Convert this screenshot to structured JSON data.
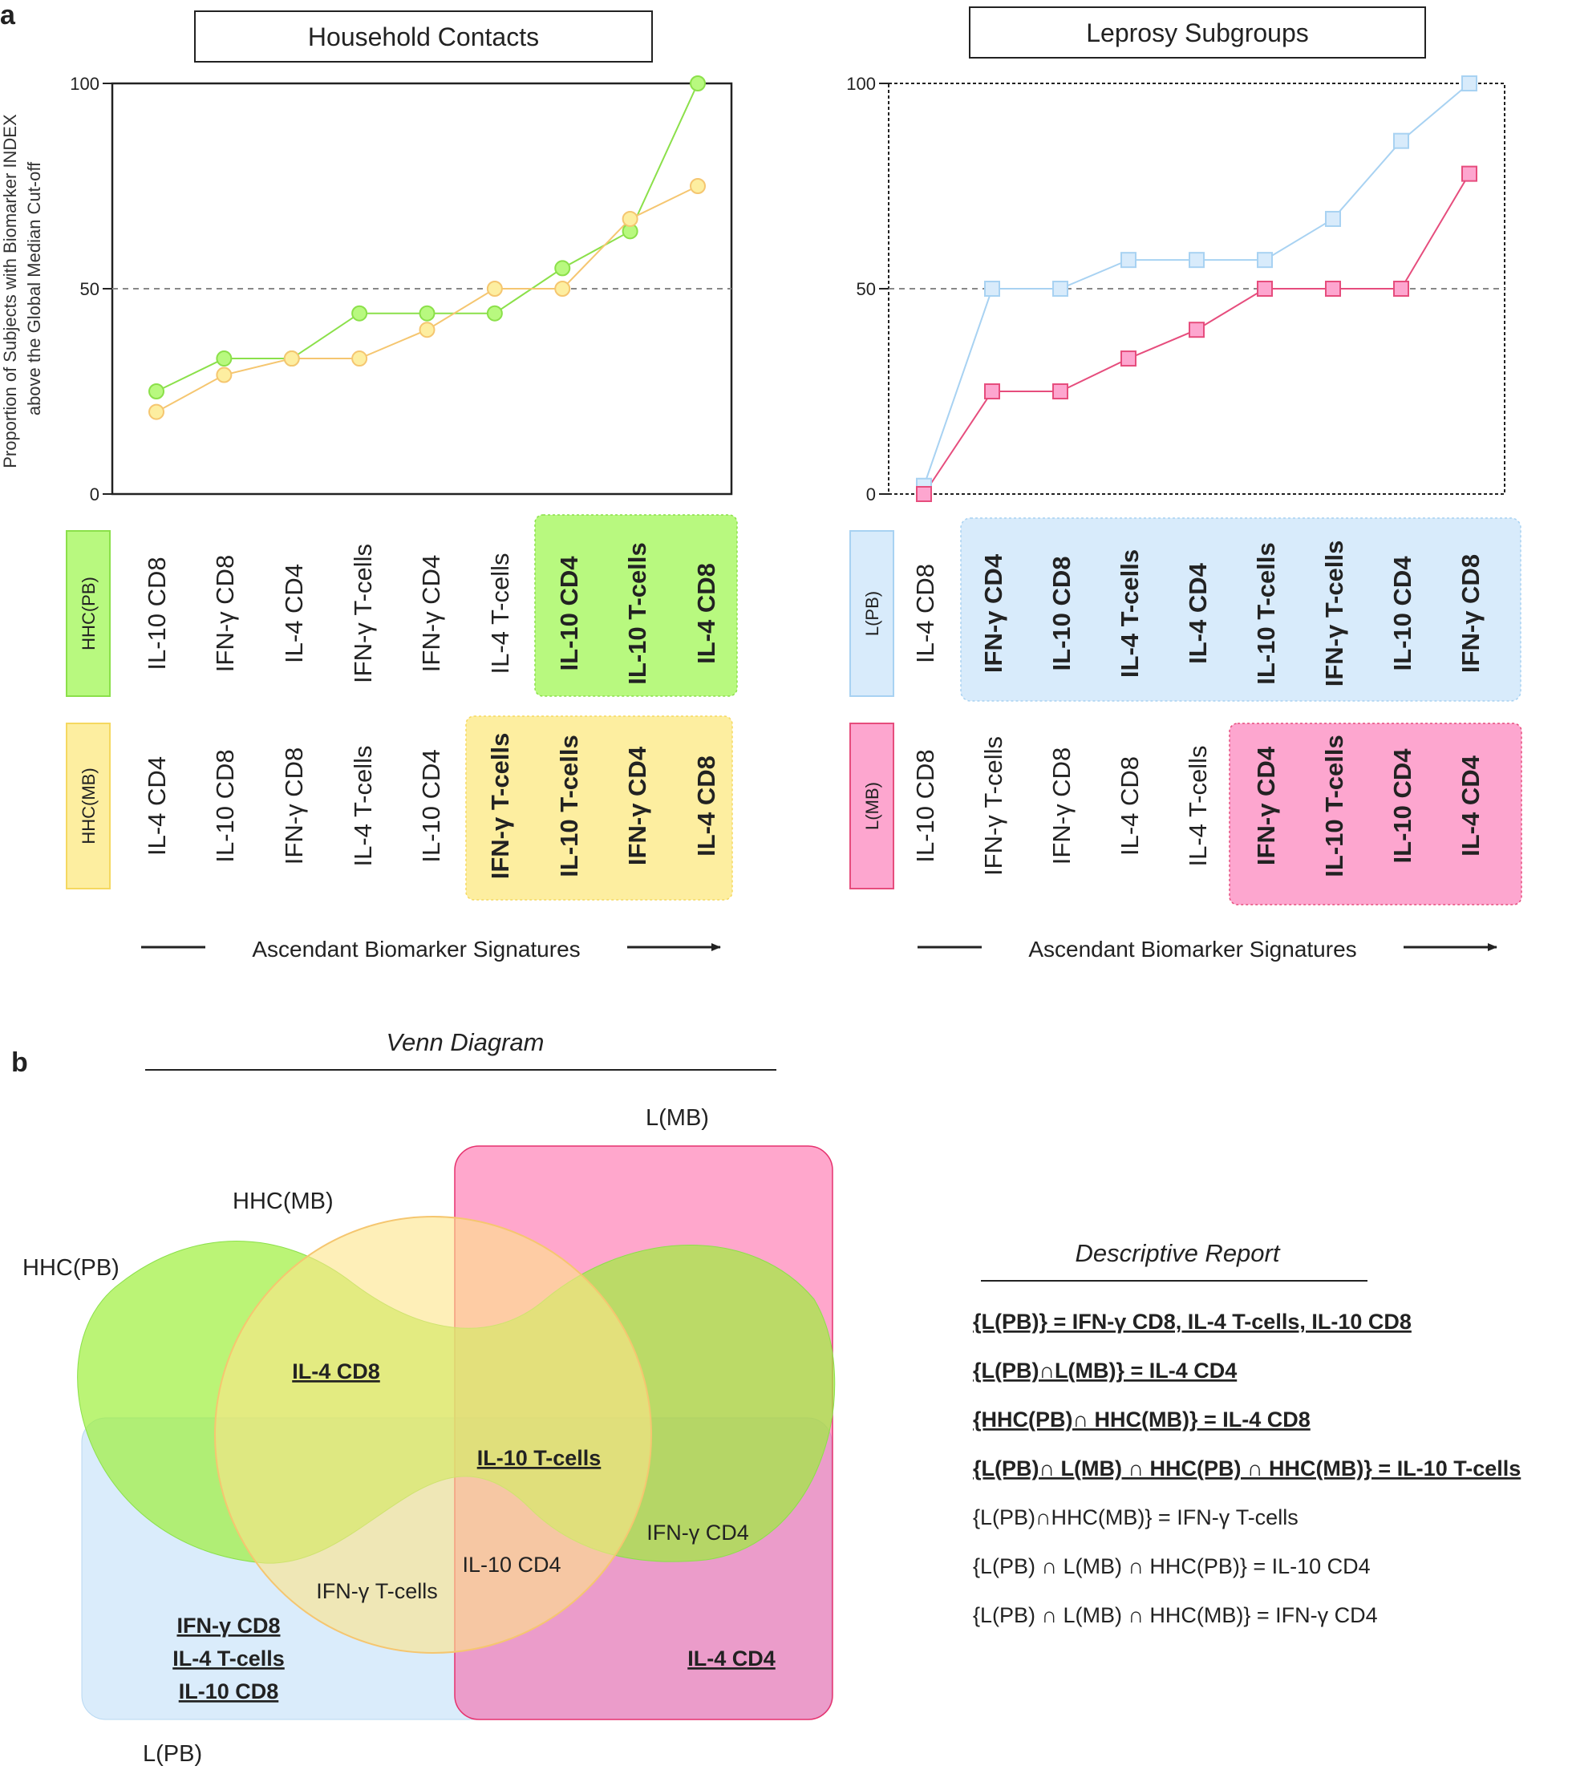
{
  "panel_a_label": "a",
  "panel_b_label": "b",
  "y_axis_label_line1": "Proportion of Subjects  with Biomarker INDEX",
  "y_axis_label_line2": "above the Global Median Cut-off",
  "colors": {
    "hhc_pb": "#b8f97f",
    "hhc_pb_line": "#8be04a",
    "hhc_mb": "#fdeea0",
    "hhc_mb_line": "#f5c670",
    "l_pb": "#d8ebfb",
    "l_pb_line": "#a8d2f2",
    "l_mb": "#fda6cf",
    "l_mb_line": "#e64d7d"
  },
  "chart_data": [
    {
      "type": "line",
      "title": "Household Contacts",
      "ylim": [
        0,
        100
      ],
      "yticks": [
        "0",
        "50",
        "100"
      ],
      "reference_line": 50,
      "xlabel": "Ascendant Biomarker Signatures",
      "x": [
        1,
        2,
        3,
        4,
        5,
        6,
        7,
        8,
        9
      ],
      "series": [
        {
          "name": "HHC(PB)",
          "values": [
            25,
            33,
            33,
            44,
            44,
            44,
            55,
            64,
            100
          ]
        },
        {
          "name": "HHC(MB)",
          "values": [
            20,
            29,
            33,
            33,
            40,
            50,
            50,
            67,
            75
          ]
        }
      ],
      "rows": [
        {
          "name": "HHC(PB)",
          "labels": [
            "IL-10 CD8",
            "IFN-γ CD8",
            "IL-4 CD4",
            "IFN-γ T-cells",
            "IFN-γ CD4",
            "IL-4  T-cells",
            "IL-10 CD4",
            "IL-10 T-cells",
            "IL-4 CD8"
          ],
          "highlight_from": 6
        },
        {
          "name": "HHC(MB)",
          "labels": [
            "IL-4 CD4",
            "IL-10 CD8",
            "IFN-γ CD8",
            "IL-4 T-cells",
            "IL-10 CD4",
            "IFN-γ T-cells",
            "IL-10 T-cells",
            "IFN-γ CD4",
            "IL-4 CD8"
          ],
          "highlight_from": 5
        }
      ]
    },
    {
      "type": "line",
      "title": "Leprosy Subgroups",
      "ylim": [
        0,
        100
      ],
      "yticks": [
        "0",
        "50",
        "100"
      ],
      "reference_line": 50,
      "xlabel": "Ascendant Biomarker Signatures",
      "x": [
        1,
        2,
        3,
        4,
        5,
        6,
        7,
        8,
        9
      ],
      "series": [
        {
          "name": "L(PB)",
          "values": [
            2,
            50,
            50,
            57,
            57,
            57,
            67,
            86,
            100
          ]
        },
        {
          "name": "L(MB)",
          "values": [
            0,
            25,
            25,
            33,
            40,
            50,
            50,
            50,
            78
          ]
        }
      ],
      "rows": [
        {
          "name": "L(PB)",
          "labels": [
            "IL-4 CD8",
            "IFN-γ CD4",
            "IL-10 CD8",
            "IL-4 T-cells",
            "IL-4 CD4",
            "IL-10 T-cells",
            "IFN-γ T-cells",
            "IL-10 CD4",
            "IFN-γ CD8"
          ],
          "highlight_from": 1
        },
        {
          "name": "L(MB)",
          "labels": [
            "IL-10 CD8",
            "IFN-γ T-cells",
            "IFN-γ CD8",
            "IL-4 CD8",
            "IL-4 T-cells",
            "IFN-γ CD4",
            "IL-10 T-cells",
            "IL-10 CD4",
            "IL-4 CD4"
          ],
          "highlight_from": 5
        }
      ]
    }
  ],
  "venn": {
    "title": "Venn Diagram",
    "set_labels": {
      "hhc_pb": "HHC(PB)",
      "hhc_mb": "HHC(MB)",
      "l_pb": "L(PB)",
      "l_mb": "L(MB)"
    },
    "regions": {
      "il4_cd8": "IL-4 CD8",
      "il10_tcells": "IL-10 T-cells",
      "ifn_cd4": "IFN-γ  CD4",
      "ifn_tcells": "IFN-γ T-cells",
      "il10_cd4": "IL-10 CD4",
      "lpb_only": [
        "IFN-γ CD8",
        "IL-4 T-cells",
        "IL-10 CD8"
      ],
      "il4_cd4": "IL-4 CD4"
    }
  },
  "report": {
    "title": "Descriptive Report",
    "lines": [
      {
        "text": "{L(PB)} = IFN-γ CD8, IL-4 T-cells, IL-10 CD8",
        "bold": true
      },
      {
        "text": "{L(PB)∩L(MB)} = IL-4 CD4",
        "bold": true
      },
      {
        "text": "{HHC(PB)∩ HHC(MB)} = IL-4 CD8",
        "bold": true
      },
      {
        "text": "{L(PB)∩ L(MB) ∩ HHC(PB) ∩ HHC(MB)} = IL-10 T-cells",
        "bold": true
      },
      {
        "text": "{L(PB)∩HHC(MB)} = IFN-γ T-cells",
        "bold": false
      },
      {
        "text": "{L(PB) ∩ L(MB) ∩ HHC(PB)} = IL-10 CD4",
        "bold": false
      },
      {
        "text": "{L(PB) ∩ L(MB) ∩ HHC(MB)} = IFN-γ CD4",
        "bold": false
      }
    ]
  }
}
